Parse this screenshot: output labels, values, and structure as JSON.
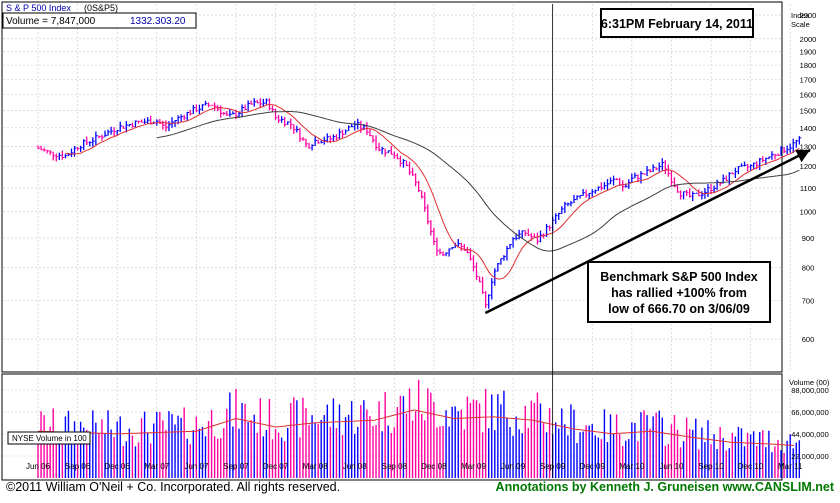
{
  "header": {
    "index_name": "S & P 500 Index",
    "symbol": "(0S&P5)",
    "volume_label": "Volume = 7,847,000",
    "last_price": "1332.30",
    "change": "3.20"
  },
  "timestamp": "6:31PM February 14, 2011",
  "annotation": {
    "lines": [
      "Benchmark S&P 500 Index",
      "has rallied +100% from",
      "low of 666.70 on 3/06/09"
    ]
  },
  "price_scale_title": [
    "Index",
    "Scale"
  ],
  "volume_scale_title": "Volume (00)",
  "volume_panel_label": "NYSE Volume in 100",
  "footer": {
    "copyright": "©2011 William O'Neil + Co. Incorporated. All rights reserved.",
    "annotations_credit": "Annotations by Kenneth J. Gruneisen  www.CANSLIM.net"
  },
  "colors": {
    "up_bar": "#0000ff",
    "down_bar": "#ff00a0",
    "ma_short": "#e03030",
    "ma_long": "#404040",
    "grid": "#c8c8c8",
    "header_blue": "#0000aa",
    "footer_green": "#007700"
  },
  "chart_data": {
    "type": "bar",
    "subtype": "ohlc-weekly-with-volume",
    "x_ticks": [
      "Jun 06",
      "Sep 06",
      "Dec 06",
      "Mar 07",
      "Jun 07",
      "Sep 07",
      "Dec 07",
      "Mar 08",
      "Jun 08",
      "Sep 08",
      "Dec 08",
      "Mar 09",
      "Jun 09",
      "Sep 09",
      "Dec 09",
      "Mar 10",
      "Jun 10",
      "Sep 10",
      "Dec 10",
      "Mar 11"
    ],
    "y_scale": "log",
    "y_ticks": [
      600,
      700,
      800,
      900,
      1000,
      1100,
      1200,
      1300,
      1400,
      1500,
      1600,
      1700,
      1800,
      1900,
      2000,
      2200
    ],
    "ylim": [
      530,
      2300
    ],
    "price_anchors": [
      {
        "x": 0.0,
        "y": 1290
      },
      {
        "x": 0.3,
        "y": 1265
      },
      {
        "x": 0.7,
        "y": 1250
      },
      {
        "x": 1.0,
        "y": 1300
      },
      {
        "x": 1.5,
        "y": 1345
      },
      {
        "x": 2.0,
        "y": 1400
      },
      {
        "x": 2.5,
        "y": 1430
      },
      {
        "x": 3.0,
        "y": 1440
      },
      {
        "x": 3.2,
        "y": 1400
      },
      {
        "x": 3.5,
        "y": 1450
      },
      {
        "x": 4.0,
        "y": 1510
      },
      {
        "x": 4.4,
        "y": 1540
      },
      {
        "x": 4.8,
        "y": 1460
      },
      {
        "x": 5.0,
        "y": 1480
      },
      {
        "x": 5.4,
        "y": 1540
      },
      {
        "x": 5.8,
        "y": 1550
      },
      {
        "x": 6.0,
        "y": 1460
      },
      {
        "x": 6.4,
        "y": 1420
      },
      {
        "x": 6.8,
        "y": 1300
      },
      {
        "x": 7.0,
        "y": 1330
      },
      {
        "x": 7.4,
        "y": 1340
      },
      {
        "x": 7.8,
        "y": 1390
      },
      {
        "x": 8.0,
        "y": 1420
      },
      {
        "x": 8.3,
        "y": 1390
      },
      {
        "x": 8.6,
        "y": 1290
      },
      {
        "x": 9.0,
        "y": 1260
      },
      {
        "x": 9.3,
        "y": 1200
      },
      {
        "x": 9.6,
        "y": 1100
      },
      {
        "x": 9.8,
        "y": 990
      },
      {
        "x": 10.0,
        "y": 880
      },
      {
        "x": 10.2,
        "y": 840
      },
      {
        "x": 10.5,
        "y": 880
      },
      {
        "x": 10.8,
        "y": 860
      },
      {
        "x": 11.0,
        "y": 800
      },
      {
        "x": 11.2,
        "y": 730
      },
      {
        "x": 11.3,
        "y": 680
      },
      {
        "x": 11.5,
        "y": 780
      },
      {
        "x": 11.8,
        "y": 850
      },
      {
        "x": 12.0,
        "y": 900
      },
      {
        "x": 12.3,
        "y": 920
      },
      {
        "x": 12.6,
        "y": 890
      },
      {
        "x": 13.0,
        "y": 960
      },
      {
        "x": 13.3,
        "y": 1020
      },
      {
        "x": 13.6,
        "y": 1050
      },
      {
        "x": 14.0,
        "y": 1090
      },
      {
        "x": 14.3,
        "y": 1110
      },
      {
        "x": 14.6,
        "y": 1140
      },
      {
        "x": 14.8,
        "y": 1100
      },
      {
        "x": 15.0,
        "y": 1140
      },
      {
        "x": 15.5,
        "y": 1180
      },
      {
        "x": 15.8,
        "y": 1210
      },
      {
        "x": 16.0,
        "y": 1140
      },
      {
        "x": 16.2,
        "y": 1080
      },
      {
        "x": 16.5,
        "y": 1060
      },
      {
        "x": 16.8,
        "y": 1080
      },
      {
        "x": 17.0,
        "y": 1100
      },
      {
        "x": 17.3,
        "y": 1130
      },
      {
        "x": 17.6,
        "y": 1180
      },
      {
        "x": 18.0,
        "y": 1200
      },
      {
        "x": 18.5,
        "y": 1250
      },
      {
        "x": 18.8,
        "y": 1280
      },
      {
        "x": 19.0,
        "y": 1300
      },
      {
        "x": 19.2,
        "y": 1330
      }
    ],
    "volume": {
      "y_ticks": [
        22000000,
        44000000,
        66000000,
        88000000
      ],
      "ylim": [
        0,
        100000000
      ],
      "anchors": [
        {
          "x": 0.0,
          "y": 55000000
        },
        {
          "x": 2.0,
          "y": 52000000
        },
        {
          "x": 4.0,
          "y": 55000000
        },
        {
          "x": 5.0,
          "y": 70000000
        },
        {
          "x": 6.0,
          "y": 60000000
        },
        {
          "x": 7.0,
          "y": 65000000
        },
        {
          "x": 8.5,
          "y": 68000000
        },
        {
          "x": 9.5,
          "y": 80000000
        },
        {
          "x": 10.5,
          "y": 70000000
        },
        {
          "x": 11.5,
          "y": 72000000
        },
        {
          "x": 12.5,
          "y": 68000000
        },
        {
          "x": 13.5,
          "y": 58000000
        },
        {
          "x": 14.5,
          "y": 52000000
        },
        {
          "x": 15.5,
          "y": 55000000
        },
        {
          "x": 16.5,
          "y": 48000000
        },
        {
          "x": 17.5,
          "y": 42000000
        },
        {
          "x": 18.5,
          "y": 40000000
        },
        {
          "x": 19.2,
          "y": 38000000
        }
      ]
    },
    "trendline": {
      "from": {
        "x": 11.3,
        "y": 666
      },
      "to": {
        "x": 19.5,
        "y": 1280
      }
    },
    "vertical_marker_x": 13.0,
    "grid": true
  }
}
